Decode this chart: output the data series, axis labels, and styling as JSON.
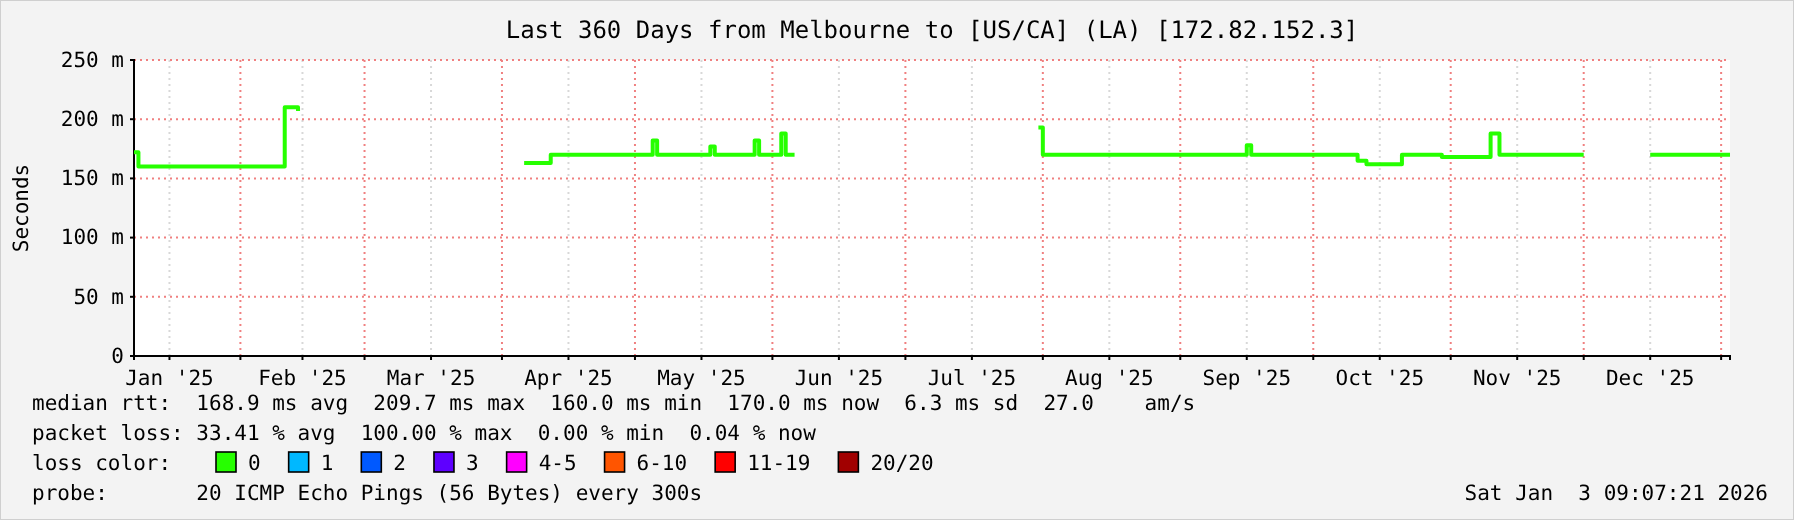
{
  "chart_data": {
    "type": "step",
    "title": "Last 360 Days from Melbourne to [US/CA] (LA) [172.82.152.3]",
    "ylabel": "Seconds",
    "legend_title": "loss color:",
    "legend": "bottom",
    "grid": true,
    "xlim": [
      "2025-01-08",
      "2026-01-03"
    ],
    "xticks": [
      {
        "value": "2025-01-16",
        "label": "Jan '25"
      },
      {
        "value": "2025-02-01",
        "label": null
      },
      {
        "value": "2025-02-15",
        "label": "Feb '25"
      },
      {
        "value": "2025-03-01",
        "label": null
      },
      {
        "value": "2025-03-16",
        "label": "Mar '25"
      },
      {
        "value": "2025-04-01",
        "label": null
      },
      {
        "value": "2025-04-16",
        "label": "Apr '25"
      },
      {
        "value": "2025-05-01",
        "label": null
      },
      {
        "value": "2025-05-16",
        "label": "May '25"
      },
      {
        "value": "2025-06-01",
        "label": null
      },
      {
        "value": "2025-06-16",
        "label": "Jun '25"
      },
      {
        "value": "2025-07-01",
        "label": null
      },
      {
        "value": "2025-07-16",
        "label": "Jul '25"
      },
      {
        "value": "2025-08-01",
        "label": null
      },
      {
        "value": "2025-08-16",
        "label": "Aug '25"
      },
      {
        "value": "2025-09-01",
        "label": null
      },
      {
        "value": "2025-09-16",
        "label": "Sep '25"
      },
      {
        "value": "2025-10-01",
        "label": null
      },
      {
        "value": "2025-10-16",
        "label": "Oct '25"
      },
      {
        "value": "2025-11-01",
        "label": null
      },
      {
        "value": "2025-11-16",
        "label": "Nov '25"
      },
      {
        "value": "2025-12-01",
        "label": null
      },
      {
        "value": "2025-12-16",
        "label": "Dec '25"
      },
      {
        "value": "2026-01-01",
        "label": null
      }
    ],
    "ylim": [
      0,
      250
    ],
    "yticks": [
      0,
      {
        "value": 50,
        "label": "50 m"
      },
      {
        "value": 100,
        "label": "100 m"
      },
      {
        "value": 150,
        "label": "150 m"
      },
      {
        "value": 200,
        "label": "200 m"
      },
      {
        "value": 250,
        "label": "250 m"
      }
    ],
    "x": [
      "2025-01-08",
      "2025-01-09",
      "2025-02-10",
      "2025-02-11",
      "2025-02-14",
      "2025-02-15",
      "2025-04-06",
      "2025-04-11",
      "2025-04-12",
      "2025-05-04",
      "2025-05-05",
      "2025-05-06",
      "2025-05-17",
      "2025-05-18",
      "2025-05-19",
      "2025-05-27",
      "2025-05-28",
      "2025-05-29",
      "2025-06-02",
      "2025-06-03",
      "2025-06-04",
      "2025-06-06",
      "2025-06-07",
      "2025-07-31",
      "2025-08-01",
      "2025-09-15",
      "2025-09-16",
      "2025-09-17",
      "2025-10-11",
      "2025-10-13",
      "2025-10-21",
      "2025-10-30",
      "2025-11-09",
      "2025-11-10",
      "2025-11-12",
      "2025-12-01",
      "2025-12-02",
      "2025-12-16",
      "2026-01-03"
    ],
    "series": [
      {
        "name": "0",
        "color": "#26ff00",
        "values": [
          172,
          160,
          160,
          210,
          207,
          null,
          163,
          163,
          170,
          170,
          182,
          170,
          170,
          177,
          170,
          170,
          182,
          170,
          170,
          188,
          170,
          170,
          null,
          193,
          170,
          170,
          178,
          170,
          165,
          162,
          170,
          168,
          168,
          188,
          170,
          170,
          null,
          170,
          170
        ]
      },
      {
        "name": "1",
        "color": "#00b8ff",
        "values": [
          null,
          null,
          null,
          null,
          null,
          null,
          null,
          null,
          null,
          null,
          null,
          null,
          null,
          null,
          null,
          null,
          null,
          null,
          null,
          null,
          null,
          null,
          null,
          null,
          null,
          null,
          null,
          null,
          null,
          null,
          null,
          null,
          null,
          null,
          null,
          null,
          null,
          null,
          null
        ]
      },
      {
        "name": "2",
        "color": "#0059ff",
        "values": [
          null,
          null,
          null,
          null,
          null,
          null,
          null,
          null,
          null,
          null,
          null,
          null,
          null,
          null,
          null,
          null,
          null,
          null,
          null,
          null,
          null,
          null,
          null,
          null,
          null,
          null,
          null,
          null,
          null,
          null,
          null,
          null,
          null,
          null,
          null,
          null,
          null,
          null,
          null
        ]
      },
      {
        "name": "3",
        "color": "#5e00ff",
        "values": [
          null,
          null,
          null,
          null,
          null,
          null,
          null,
          null,
          null,
          null,
          null,
          null,
          null,
          null,
          null,
          null,
          null,
          null,
          null,
          null,
          null,
          null,
          null,
          null,
          null,
          null,
          null,
          null,
          null,
          null,
          null,
          null,
          null,
          null,
          null,
          null,
          null,
          null,
          null
        ]
      },
      {
        "name": "4-5",
        "color": "#ff00ff",
        "values": [
          null,
          null,
          null,
          null,
          null,
          null,
          null,
          null,
          null,
          null,
          null,
          null,
          null,
          null,
          null,
          null,
          null,
          null,
          null,
          null,
          null,
          null,
          null,
          null,
          null,
          null,
          null,
          null,
          null,
          null,
          null,
          null,
          null,
          null,
          null,
          null,
          null,
          null,
          null
        ]
      },
      {
        "name": "6-10",
        "color": "#ff5500",
        "values": [
          null,
          null,
          null,
          null,
          null,
          null,
          null,
          null,
          null,
          null,
          null,
          null,
          null,
          null,
          null,
          null,
          null,
          null,
          null,
          null,
          null,
          null,
          null,
          null,
          null,
          null,
          null,
          null,
          null,
          null,
          null,
          null,
          null,
          null,
          null,
          null,
          null,
          null,
          null
        ]
      },
      {
        "name": "11-19",
        "color": "#ff0000",
        "values": [
          null,
          null,
          null,
          null,
          null,
          null,
          null,
          null,
          null,
          null,
          null,
          null,
          null,
          null,
          null,
          null,
          null,
          null,
          null,
          null,
          null,
          null,
          null,
          null,
          null,
          null,
          null,
          null,
          null,
          null,
          null,
          null,
          null,
          null,
          null,
          null,
          null,
          null,
          null
        ]
      },
      {
        "name": "20/20",
        "color": "#a10000",
        "values": [
          null,
          null,
          null,
          null,
          null,
          null,
          null,
          null,
          null,
          null,
          null,
          null,
          null,
          null,
          null,
          null,
          null,
          null,
          null,
          null,
          null,
          null,
          null,
          null,
          null,
          null,
          null,
          null,
          null,
          null,
          null,
          null,
          null,
          null,
          null,
          null,
          null,
          null,
          null
        ]
      }
    ],
    "annotations": [
      "median rtt:  168.9 ms avg  209.7 ms max  160.0 ms min  170.0 ms now  6.3 ms sd  27.0    am/s",
      "packet loss: 33.41 % avg  100.00 % max  0.00 % min  0.04 % now",
      "probe:       20 ICMP Echo Pings (56 Bytes) every 300s",
      "Sat Jan  3 09:07:21 2026"
    ]
  }
}
